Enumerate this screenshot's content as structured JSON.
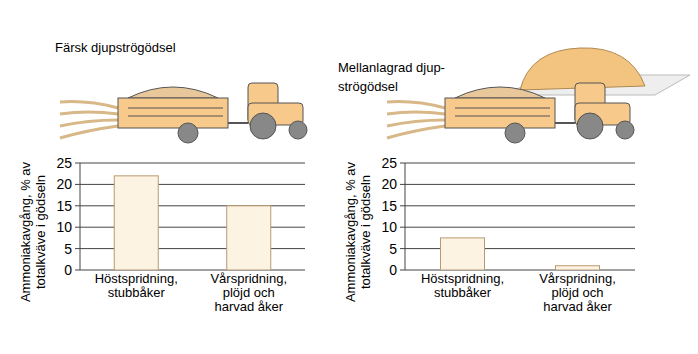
{
  "chart_data": [
    {
      "type": "bar",
      "title": "Färsk djupströgödsel",
      "y_label": "Ammoniakavgång, % av\ntotalkväve i gödseln",
      "categories": [
        "Höstspridning,\nstubbåker",
        "Vårspridning,\nplöjd och\nharvad åker"
      ],
      "values": [
        22,
        15
      ],
      "color": "#fdf3e2",
      "ylim": [
        0,
        25
      ],
      "yticks": [
        0,
        5,
        10,
        15,
        20,
        25
      ],
      "grid": true
    },
    {
      "type": "bar",
      "title": "Mellanlagrad djup-\nströgödsel",
      "y_label": "Ammoniakavgång, % av\ntotalkväve i gödseln",
      "categories": [
        "Höstspridning,\nstubbåker",
        "Vårspridning,\nplöjd och\nharvad åker"
      ],
      "values": [
        7.5,
        1
      ],
      "color": "#fdf3e2",
      "ylim": [
        0,
        25
      ],
      "yticks": [
        0,
        5,
        10,
        15,
        20,
        25
      ],
      "grid": true
    }
  ]
}
